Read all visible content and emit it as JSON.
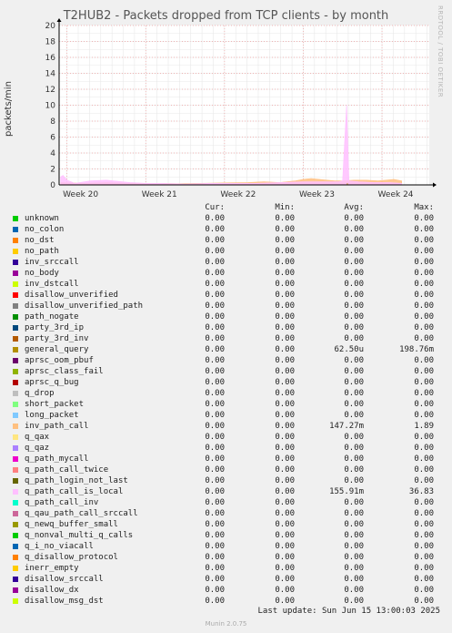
{
  "title": "T2HUB2 - Packets dropped from TCP clients - by month",
  "side_tag": "RRDTOOL / TOBI OETIKER",
  "footer": {
    "last_update": "Last update: Sun Jun 15 13:00:03 2025",
    "generator": "Munin 2.0.75"
  },
  "legend_headers": {
    "cur": "Cur:",
    "min": "Min:",
    "avg": "Avg:",
    "max": "Max:"
  },
  "chart_data": {
    "type": "area",
    "title": "T2HUB2 - Packets dropped from TCP clients - by month",
    "ylabel": "packets/min",
    "ylim": [
      0,
      20
    ],
    "y_ticks": [
      "0",
      "2",
      "4",
      "6",
      "8",
      "10",
      "12",
      "14",
      "16",
      "18",
      "20"
    ],
    "x_ticks": [
      "Week 20",
      "Week 21",
      "Week 22",
      "Week 23",
      "Week 24"
    ],
    "grid": true,
    "series": [
      {
        "name": "unknown",
        "color": "#00cc00",
        "cur": "0.00",
        "min": "0.00",
        "avg": "0.00",
        "max": "0.00"
      },
      {
        "name": "no_colon",
        "color": "#0066b3",
        "cur": "0.00",
        "min": "0.00",
        "avg": "0.00",
        "max": "0.00"
      },
      {
        "name": "no_dst",
        "color": "#ff8000",
        "cur": "0.00",
        "min": "0.00",
        "avg": "0.00",
        "max": "0.00"
      },
      {
        "name": "no_path",
        "color": "#ffcc00",
        "cur": "0.00",
        "min": "0.00",
        "avg": "0.00",
        "max": "0.00"
      },
      {
        "name": "inv_srccall",
        "color": "#330099",
        "cur": "0.00",
        "min": "0.00",
        "avg": "0.00",
        "max": "0.00"
      },
      {
        "name": "no_body",
        "color": "#990099",
        "cur": "0.00",
        "min": "0.00",
        "avg": "0.00",
        "max": "0.00"
      },
      {
        "name": "inv_dstcall",
        "color": "#ccff00",
        "cur": "0.00",
        "min": "0.00",
        "avg": "0.00",
        "max": "0.00"
      },
      {
        "name": "disallow_unverified",
        "color": "#ff0000",
        "cur": "0.00",
        "min": "0.00",
        "avg": "0.00",
        "max": "0.00"
      },
      {
        "name": "disallow_unverified_path",
        "color": "#808080",
        "cur": "0.00",
        "min": "0.00",
        "avg": "0.00",
        "max": "0.00"
      },
      {
        "name": "path_nogate",
        "color": "#008f00",
        "cur": "0.00",
        "min": "0.00",
        "avg": "0.00",
        "max": "0.00"
      },
      {
        "name": "party_3rd_ip",
        "color": "#00487d",
        "cur": "0.00",
        "min": "0.00",
        "avg": "0.00",
        "max": "0.00"
      },
      {
        "name": "party_3rd_inv",
        "color": "#b35a00",
        "cur": "0.00",
        "min": "0.00",
        "avg": "0.00",
        "max": "0.00"
      },
      {
        "name": "general_query",
        "color": "#b38f00",
        "cur": "0.00",
        "min": "0.00",
        "avg": "62.50u",
        "max": "198.76m"
      },
      {
        "name": "aprsc_oom_pbuf",
        "color": "#6b006b",
        "cur": "0.00",
        "min": "0.00",
        "avg": "0.00",
        "max": "0.00"
      },
      {
        "name": "aprsc_class_fail",
        "color": "#8fb300",
        "cur": "0.00",
        "min": "0.00",
        "avg": "0.00",
        "max": "0.00"
      },
      {
        "name": "aprsc_q_bug",
        "color": "#b30000",
        "cur": "0.00",
        "min": "0.00",
        "avg": "0.00",
        "max": "0.00"
      },
      {
        "name": "q_drop",
        "color": "#bebebe",
        "cur": "0.00",
        "min": "0.00",
        "avg": "0.00",
        "max": "0.00"
      },
      {
        "name": "short_packet",
        "color": "#80ff80",
        "cur": "0.00",
        "min": "0.00",
        "avg": "0.00",
        "max": "0.00"
      },
      {
        "name": "long_packet",
        "color": "#80c9ff",
        "cur": "0.00",
        "min": "0.00",
        "avg": "0.00",
        "max": "0.00"
      },
      {
        "name": "inv_path_call",
        "color": "#ffc080",
        "cur": "0.00",
        "min": "0.00",
        "avg": "147.27m",
        "max": "1.89"
      },
      {
        "name": "q_qax",
        "color": "#ffe680",
        "cur": "0.00",
        "min": "0.00",
        "avg": "0.00",
        "max": "0.00"
      },
      {
        "name": "q_qaz",
        "color": "#aa80ff",
        "cur": "0.00",
        "min": "0.00",
        "avg": "0.00",
        "max": "0.00"
      },
      {
        "name": "q_path_mycall",
        "color": "#ee00cc",
        "cur": "0.00",
        "min": "0.00",
        "avg": "0.00",
        "max": "0.00"
      },
      {
        "name": "q_path_call_twice",
        "color": "#ff8080",
        "cur": "0.00",
        "min": "0.00",
        "avg": "0.00",
        "max": "0.00"
      },
      {
        "name": "q_path_login_not_last",
        "color": "#666600",
        "cur": "0.00",
        "min": "0.00",
        "avg": "0.00",
        "max": "0.00"
      },
      {
        "name": "q_path_call_is_local",
        "color": "#ffbfff",
        "cur": "0.00",
        "min": "0.00",
        "avg": "155.91m",
        "max": "36.83"
      },
      {
        "name": "q_path_call_inv",
        "color": "#00ffcc",
        "cur": "0.00",
        "min": "0.00",
        "avg": "0.00",
        "max": "0.00"
      },
      {
        "name": "q_qau_path_call_srccall",
        "color": "#cc6699",
        "cur": "0.00",
        "min": "0.00",
        "avg": "0.00",
        "max": "0.00"
      },
      {
        "name": "q_newq_buffer_small",
        "color": "#999900",
        "cur": "0.00",
        "min": "0.00",
        "avg": "0.00",
        "max": "0.00"
      },
      {
        "name": "q_nonval_multi_q_calls",
        "color": "#00cc00",
        "cur": "0.00",
        "min": "0.00",
        "avg": "0.00",
        "max": "0.00"
      },
      {
        "name": "q_i_no_viacall",
        "color": "#0066b3",
        "cur": "0.00",
        "min": "0.00",
        "avg": "0.00",
        "max": "0.00"
      },
      {
        "name": "q_disallow_protocol",
        "color": "#ff8000",
        "cur": "0.00",
        "min": "0.00",
        "avg": "0.00",
        "max": "0.00"
      },
      {
        "name": "inerr_empty",
        "color": "#ffcc00",
        "cur": "0.00",
        "min": "0.00",
        "avg": "0.00",
        "max": "0.00"
      },
      {
        "name": "disallow_srccall",
        "color": "#330099",
        "cur": "0.00",
        "min": "0.00",
        "avg": "0.00",
        "max": "0.00"
      },
      {
        "name": "disallow_dx",
        "color": "#990099",
        "cur": "0.00",
        "min": "0.00",
        "avg": "0.00",
        "max": "0.00"
      },
      {
        "name": "disallow_msg_dst",
        "color": "#ccff00",
        "cur": "0.00",
        "min": "0.00",
        "avg": "0.00",
        "max": "0.00"
      }
    ],
    "activity": {
      "x_range_weeks": [
        19.9,
        24.6
      ],
      "inv_path_call": [
        [
          19.92,
          0.3
        ],
        [
          20.2,
          0.2
        ],
        [
          20.5,
          0.3
        ],
        [
          20.8,
          0.2
        ],
        [
          21.1,
          0.2
        ],
        [
          21.4,
          0.15
        ],
        [
          21.7,
          0.2
        ],
        [
          22.0,
          0.25
        ],
        [
          22.3,
          0.3
        ],
        [
          22.5,
          0.4
        ],
        [
          22.7,
          0.3
        ],
        [
          22.9,
          0.5
        ],
        [
          23.0,
          0.7
        ],
        [
          23.1,
          0.8
        ],
        [
          23.2,
          0.7
        ],
        [
          23.3,
          0.6
        ],
        [
          23.4,
          0.5
        ],
        [
          23.5,
          0.5
        ],
        [
          23.65,
          0.6
        ],
        [
          23.8,
          0.6
        ],
        [
          23.95,
          0.5
        ],
        [
          24.05,
          0.6
        ],
        [
          24.15,
          0.7
        ],
        [
          24.25,
          0.5
        ]
      ],
      "q_path_call_is_local": [
        [
          19.92,
          1.0
        ],
        [
          19.95,
          1.2
        ],
        [
          20.0,
          0.6
        ],
        [
          20.1,
          0.2
        ],
        [
          20.3,
          0.5
        ],
        [
          20.5,
          0.6
        ],
        [
          20.7,
          0.4
        ],
        [
          20.8,
          0.3
        ],
        [
          21.0,
          0.2
        ],
        [
          21.2,
          0.2
        ],
        [
          21.5,
          0.1
        ],
        [
          21.8,
          0.2
        ],
        [
          22.1,
          0.2
        ],
        [
          22.4,
          0.2
        ],
        [
          22.7,
          0.3
        ],
        [
          23.0,
          0.4
        ],
        [
          23.2,
          0.4
        ],
        [
          23.45,
          0.4
        ],
        [
          23.5,
          0.5
        ],
        [
          23.55,
          10.0
        ],
        [
          23.58,
          0.5
        ],
        [
          23.7,
          0.4
        ],
        [
          23.9,
          0.3
        ],
        [
          24.1,
          0.3
        ],
        [
          24.25,
          0.2
        ]
      ],
      "general_query": [
        [
          23.56,
          0.2
        ]
      ]
    }
  }
}
